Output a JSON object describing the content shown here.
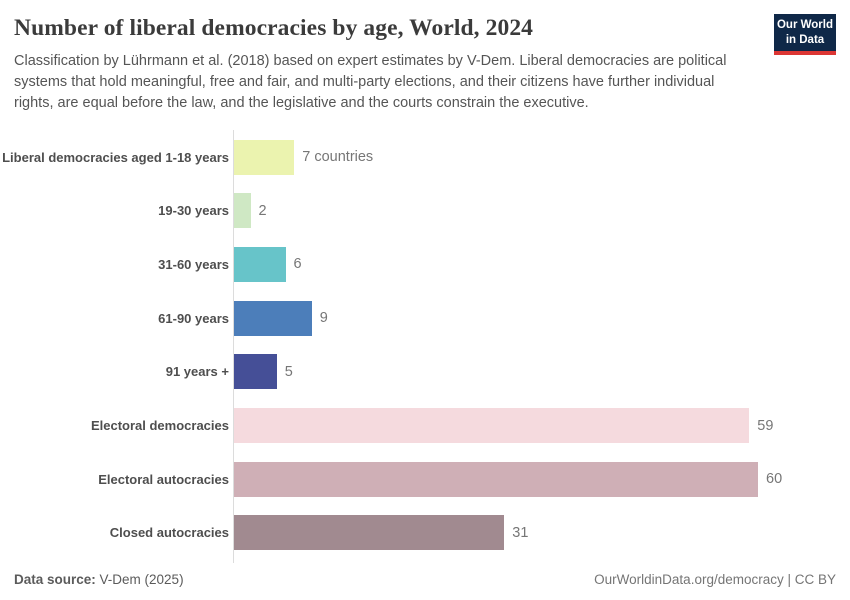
{
  "header": {
    "title": "Number of liberal democracies by age, World, 2024",
    "subtitle": "Classification by Lührmann et al. (2018) based on expert estimates by V-Dem. Liberal democracies are political systems that hold meaningful, free and fair, and multi-party elections, and their citizens have further individual rights, are equal before the law, and the legislative and the courts constrain the executive.",
    "logo": {
      "line1": "Our World",
      "line2": "in Data",
      "background_color": "#0f2848",
      "accent_color": "#dc3634"
    }
  },
  "chart_data": {
    "type": "bar",
    "orientation": "horizontal",
    "title": "Number of liberal democracies by age, World, 2024",
    "categories": [
      "Liberal democracies aged 1-18 years",
      "19-30 years",
      "31-60 years",
      "61-90 years",
      "91 years +",
      "Electoral democracies",
      "Electoral autocracies",
      "Closed autocracies"
    ],
    "values": [
      7,
      2,
      6,
      9,
      5,
      59,
      60,
      31
    ],
    "value_labels": [
      "7 countries",
      "2",
      "6",
      "9",
      "5",
      "59",
      "60",
      "31"
    ],
    "bar_colors": [
      "#ebf3af",
      "#cfe8c4",
      "#67c4c9",
      "#4c7eba",
      "#454f97",
      "#f5dade",
      "#cfafb6",
      "#a18a90"
    ],
    "xlim": [
      0,
      60
    ],
    "xlabel": "",
    "ylabel": "",
    "grid": false,
    "legend": "none"
  },
  "footer": {
    "source_label": "Data source:",
    "source_value": " V-Dem (2025)",
    "credit": "OurWorldinData.org/democracy | CC BY"
  }
}
